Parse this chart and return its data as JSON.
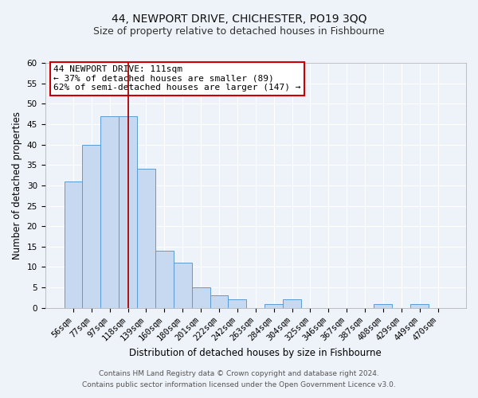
{
  "title": "44, NEWPORT DRIVE, CHICHESTER, PO19 3QQ",
  "subtitle": "Size of property relative to detached houses in Fishbourne",
  "xlabel": "Distribution of detached houses by size in Fishbourne",
  "ylabel": "Number of detached properties",
  "bin_labels": [
    "56sqm",
    "77sqm",
    "97sqm",
    "118sqm",
    "139sqm",
    "160sqm",
    "180sqm",
    "201sqm",
    "222sqm",
    "242sqm",
    "263sqm",
    "284sqm",
    "304sqm",
    "325sqm",
    "346sqm",
    "367sqm",
    "387sqm",
    "408sqm",
    "429sqm",
    "449sqm",
    "470sqm"
  ],
  "bar_heights": [
    31,
    40,
    47,
    47,
    34,
    14,
    11,
    5,
    3,
    2,
    0,
    1,
    2,
    0,
    0,
    0,
    0,
    1,
    0,
    1,
    0
  ],
  "bar_color": "#c6d9f0",
  "bar_edge_color": "#5b9bd5",
  "vline_x": 3.0,
  "vline_color": "#aa0000",
  "annotation_title": "44 NEWPORT DRIVE: 111sqm",
  "annotation_line1": "← 37% of detached houses are smaller (89)",
  "annotation_line2": "62% of semi-detached houses are larger (147) →",
  "annotation_box_color": "#ffffff",
  "annotation_box_edge_color": "#cc0000",
  "ylim": [
    0,
    60
  ],
  "yticks": [
    0,
    5,
    10,
    15,
    20,
    25,
    30,
    35,
    40,
    45,
    50,
    55,
    60
  ],
  "footer_line1": "Contains HM Land Registry data © Crown copyright and database right 2024.",
  "footer_line2": "Contains public sector information licensed under the Open Government Licence v3.0.",
  "background_color": "#eef2f9",
  "grid_color": "#ffffff",
  "title_fontsize": 10,
  "subtitle_fontsize": 9,
  "axis_label_fontsize": 8.5,
  "tick_fontsize": 7.5,
  "annotation_fontsize": 8,
  "footer_fontsize": 6.5
}
